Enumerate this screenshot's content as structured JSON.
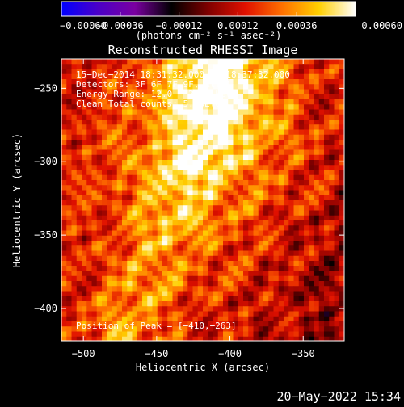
{
  "chart_data": {
    "type": "heatmap",
    "title": "Reconstructed RHESSI Image",
    "xlabel": "Heliocentric X (arcsec)",
    "ylabel": "Heliocentric Y (arcsec)",
    "xlim": [
      -515,
      -322
    ],
    "ylim": [
      -422,
      -230
    ],
    "x_ticks": [
      {
        "value": -500,
        "label": "−500"
      },
      {
        "value": -450,
        "label": "−450"
      },
      {
        "value": -400,
        "label": "−400"
      },
      {
        "value": -350,
        "label": "−350"
      }
    ],
    "y_ticks": [
      {
        "value": -250,
        "label": "−250"
      },
      {
        "value": -300,
        "label": "−300"
      },
      {
        "value": -350,
        "label": "−350"
      },
      {
        "value": -400,
        "label": "−400"
      }
    ],
    "colorbar": {
      "min": -0.0006,
      "max": 0.0006,
      "ticks": [
        {
          "value": -0.0006,
          "label": "−0.00060"
        },
        {
          "value": -0.00036,
          "label": "−0.00036"
        },
        {
          "value": -0.00012,
          "label": "−0.00012"
        },
        {
          "value": 0.00012,
          "label": "0.00012"
        },
        {
          "value": 0.00036,
          "label": "0.00036"
        },
        {
          "value": 0.0006,
          "label": "0.00060"
        }
      ],
      "unit_label": "(photons cm⁻² s⁻¹ asec⁻²)",
      "colors": [
        "#0000ff",
        "#4b00c8",
        "#7a00a0",
        "#000000",
        "#800000",
        "#e01000",
        "#ff7000",
        "#ffd000",
        "#ffffff"
      ]
    },
    "annotations": [
      "15−Dec−2014 18:31:32.000 to 18:37:32.000",
      "Detectors: 3F 6F 7F 9F, Att 1",
      "Energy Range: 12.0 − 25.0 keV",
      "Clean    Total counts: 5.08E+05"
    ],
    "peak_label": "Position of Peak = [−410,−263]",
    "peak": {
      "x": -410,
      "y": -263
    },
    "grid": false,
    "legend": "none"
  },
  "footer": {
    "date": "20−May−2022 15:34"
  }
}
